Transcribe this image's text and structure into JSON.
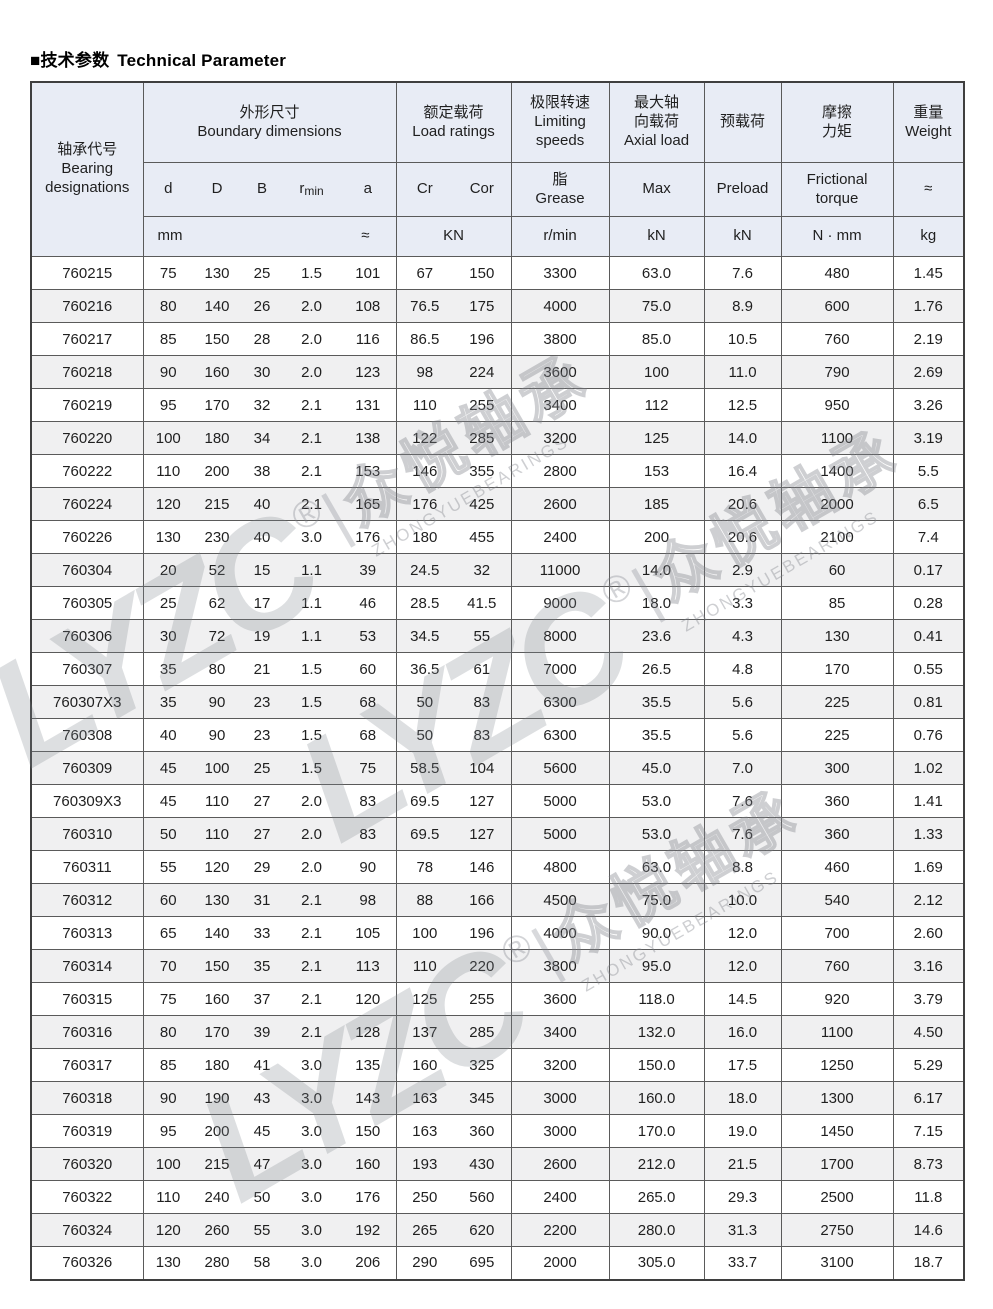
{
  "title": {
    "zh": "■技术参数",
    "en": "Technical Parameter"
  },
  "header": {
    "bearing": {
      "zh": "轴承代号",
      "en1": "Bearing",
      "en2": "designations"
    },
    "boundary": {
      "zh": "外形尺寸",
      "en": "Boundary dimensions",
      "d": "d",
      "D": "D",
      "B": "B",
      "r": "r",
      "r_sub": "min",
      "a": "a",
      "unit_left": "mm",
      "unit_right": "≈"
    },
    "load": {
      "zh": "额定载荷",
      "en": "Load ratings",
      "cr": "Cr",
      "cor": "Cor",
      "unit": "KN"
    },
    "limiting": {
      "zh": "极限转速",
      "en1": "Limiting",
      "en2": "speeds",
      "sub_zh": "脂",
      "sub_en": "Grease",
      "unit": "r/min"
    },
    "axial": {
      "zh1": "最大轴",
      "zh2": "向载荷",
      "en": "Axial load",
      "sub": "Max",
      "unit": "kN"
    },
    "preload": {
      "zh": "预载荷",
      "sub": "Preload",
      "unit": "kN"
    },
    "friction": {
      "zh1": "摩擦",
      "zh2": "力矩",
      "sub1": "Frictional",
      "sub2": "torque",
      "unit": "N · mm"
    },
    "weight": {
      "zh": "重量",
      "en": "Weight",
      "sub": "≈",
      "unit": "kg"
    }
  },
  "rows": [
    [
      "760215",
      "75",
      "130",
      "25",
      "1.5",
      "101",
      "67",
      "150",
      "3300",
      "63.0",
      "7.6",
      "480",
      "1.45"
    ],
    [
      "760216",
      "80",
      "140",
      "26",
      "2.0",
      "108",
      "76.5",
      "175",
      "4000",
      "75.0",
      "8.9",
      "600",
      "1.76"
    ],
    [
      "760217",
      "85",
      "150",
      "28",
      "2.0",
      "116",
      "86.5",
      "196",
      "3800",
      "85.0",
      "10.5",
      "760",
      "2.19"
    ],
    [
      "760218",
      "90",
      "160",
      "30",
      "2.0",
      "123",
      "98",
      "224",
      "3600",
      "100",
      "11.0",
      "790",
      "2.69"
    ],
    [
      "760219",
      "95",
      "170",
      "32",
      "2.1",
      "131",
      "110",
      "255",
      "3400",
      "112",
      "12.5",
      "950",
      "3.26"
    ],
    [
      "760220",
      "100",
      "180",
      "34",
      "2.1",
      "138",
      "122",
      "285",
      "3200",
      "125",
      "14.0",
      "1100",
      "3.19"
    ],
    [
      "760222",
      "110",
      "200",
      "38",
      "2.1",
      "153",
      "146",
      "355",
      "2800",
      "153",
      "16.4",
      "1400",
      "5.5"
    ],
    [
      "760224",
      "120",
      "215",
      "40",
      "2.1",
      "165",
      "176",
      "425",
      "2600",
      "185",
      "20.6",
      "2000",
      "6.5"
    ],
    [
      "760226",
      "130",
      "230",
      "40",
      "3.0",
      "176",
      "180",
      "455",
      "2400",
      "200",
      "20.6",
      "2100",
      "7.4"
    ],
    [
      "760304",
      "20",
      "52",
      "15",
      "1.1",
      "39",
      "24.5",
      "32",
      "11000",
      "14.0",
      "2.9",
      "60",
      "0.17"
    ],
    [
      "760305",
      "25",
      "62",
      "17",
      "1.1",
      "46",
      "28.5",
      "41.5",
      "9000",
      "18.0",
      "3.3",
      "85",
      "0.28"
    ],
    [
      "760306",
      "30",
      "72",
      "19",
      "1.1",
      "53",
      "34.5",
      "55",
      "8000",
      "23.6",
      "4.3",
      "130",
      "0.41"
    ],
    [
      "760307",
      "35",
      "80",
      "21",
      "1.5",
      "60",
      "36.5",
      "61",
      "7000",
      "26.5",
      "4.8",
      "170",
      "0.55"
    ],
    [
      "760307X3",
      "35",
      "90",
      "23",
      "1.5",
      "68",
      "50",
      "83",
      "6300",
      "35.5",
      "5.6",
      "225",
      "0.81"
    ],
    [
      "760308",
      "40",
      "90",
      "23",
      "1.5",
      "68",
      "50",
      "83",
      "6300",
      "35.5",
      "5.6",
      "225",
      "0.76"
    ],
    [
      "760309",
      "45",
      "100",
      "25",
      "1.5",
      "75",
      "58.5",
      "104",
      "5600",
      "45.0",
      "7.0",
      "300",
      "1.02"
    ],
    [
      "760309X3",
      "45",
      "110",
      "27",
      "2.0",
      "83",
      "69.5",
      "127",
      "5000",
      "53.0",
      "7.6",
      "360",
      "1.41"
    ],
    [
      "760310",
      "50",
      "110",
      "27",
      "2.0",
      "83",
      "69.5",
      "127",
      "5000",
      "53.0",
      "7.6",
      "360",
      "1.33"
    ],
    [
      "760311",
      "55",
      "120",
      "29",
      "2.0",
      "90",
      "78",
      "146",
      "4800",
      "63.0",
      "8.8",
      "460",
      "1.69"
    ],
    [
      "760312",
      "60",
      "130",
      "31",
      "2.1",
      "98",
      "88",
      "166",
      "4500",
      "75.0",
      "10.0",
      "540",
      "2.12"
    ],
    [
      "760313",
      "65",
      "140",
      "33",
      "2.1",
      "105",
      "100",
      "196",
      "4000",
      "90.0",
      "12.0",
      "700",
      "2.60"
    ],
    [
      "760314",
      "70",
      "150",
      "35",
      "2.1",
      "113",
      "110",
      "220",
      "3800",
      "95.0",
      "12.0",
      "760",
      "3.16"
    ],
    [
      "760315",
      "75",
      "160",
      "37",
      "2.1",
      "120",
      "125",
      "255",
      "3600",
      "118.0",
      "14.5",
      "920",
      "3.79"
    ],
    [
      "760316",
      "80",
      "170",
      "39",
      "2.1",
      "128",
      "137",
      "285",
      "3400",
      "132.0",
      "16.0",
      "1100",
      "4.50"
    ],
    [
      "760317",
      "85",
      "180",
      "41",
      "3.0",
      "135",
      "160",
      "325",
      "3200",
      "150.0",
      "17.5",
      "1250",
      "5.29"
    ],
    [
      "760318",
      "90",
      "190",
      "43",
      "3.0",
      "143",
      "163",
      "345",
      "3000",
      "160.0",
      "18.0",
      "1300",
      "6.17"
    ],
    [
      "760319",
      "95",
      "200",
      "45",
      "3.0",
      "150",
      "163",
      "360",
      "3000",
      "170.0",
      "19.0",
      "1450",
      "7.15"
    ],
    [
      "760320",
      "100",
      "215",
      "47",
      "3.0",
      "160",
      "193",
      "430",
      "2600",
      "212.0",
      "21.5",
      "1700",
      "8.73"
    ],
    [
      "760322",
      "110",
      "240",
      "50",
      "3.0",
      "176",
      "250",
      "560",
      "2400",
      "265.0",
      "29.3",
      "2500",
      "11.8"
    ],
    [
      "760324",
      "120",
      "260",
      "55",
      "3.0",
      "192",
      "265",
      "620",
      "2200",
      "280.0",
      "31.3",
      "2750",
      "14.6"
    ],
    [
      "760326",
      "130",
      "280",
      "58",
      "3.0",
      "206",
      "290",
      "695",
      "2000",
      "305.0",
      "33.7",
      "3100",
      "18.7"
    ]
  ],
  "watermark": {
    "logo": "LYZC",
    "reg": "®",
    "sep": "|",
    "zh": "众悦轴承",
    "en": "ZHONGYUEBEARINGS"
  }
}
